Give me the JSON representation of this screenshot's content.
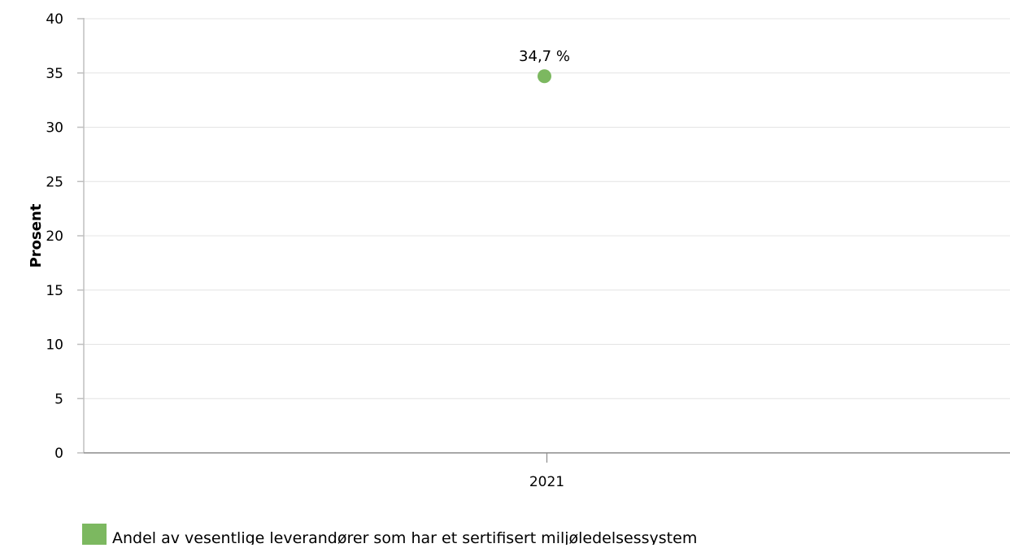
{
  "chart_data": {
    "type": "scatter",
    "title": "",
    "xlabel": "",
    "ylabel": "Prosent",
    "categories": [
      "2021"
    ],
    "series": [
      {
        "name": "Andel av vesentlige leverandører som har et sertifisert miljøledelsessystem",
        "values": [
          34.7
        ],
        "data_labels": [
          "34,7 %"
        ],
        "color": "#7cb860"
      }
    ],
    "ylim": [
      0,
      40
    ],
    "yticks": [
      0,
      5,
      10,
      15,
      20,
      25,
      30,
      35,
      40
    ],
    "grid": true,
    "legend_position": "bottom-left"
  }
}
